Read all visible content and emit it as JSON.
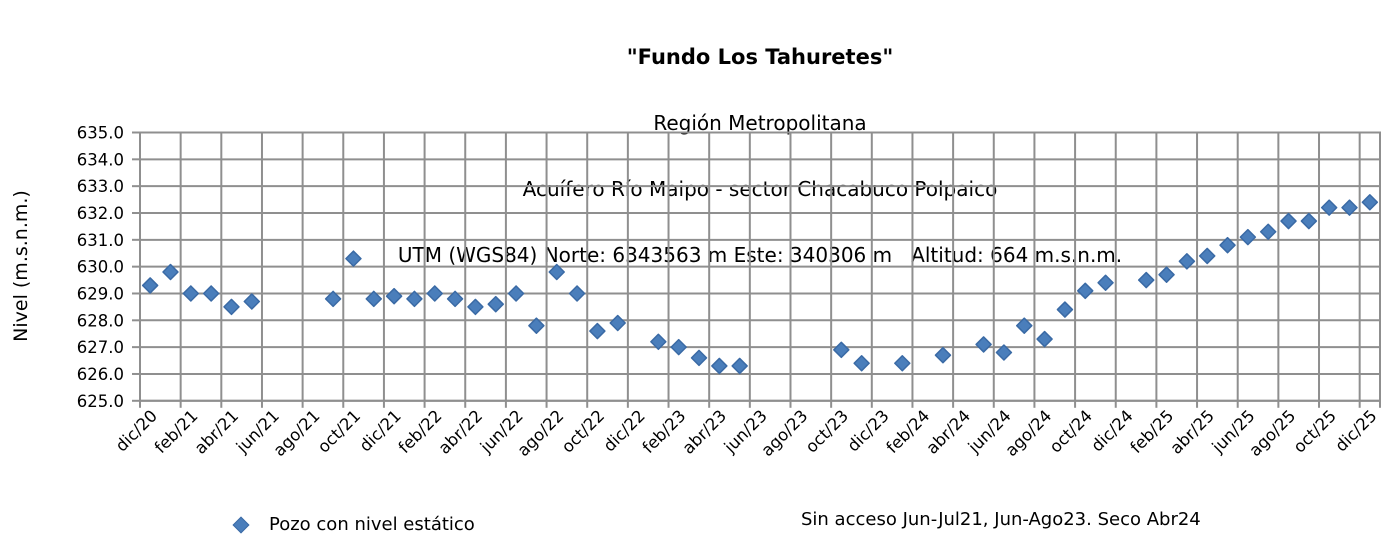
{
  "header": {
    "title": "\"Fundo Los Tahuretes\"",
    "subtitle_region": "Región Metropolitana",
    "subtitle_aquifer": "Acuífero Río Maipo - sector Chacabuco Polpaico",
    "subtitle_location": "UTM (WGS84) Norte: 6343563 m Este: 340306 m   Altitud: 664 m.s.n.m."
  },
  "legend": {
    "label": "Pozo con nivel estático"
  },
  "note": "Sin acceso Jun-Jul21, Jun-Ago23. Seco Abr24",
  "chart_data": {
    "type": "scatter",
    "title": "\"Fundo Los Tahuretes\"",
    "subtitles": [
      "Región Metropolitana",
      "Acuífero Río Maipo - sector Chacabuco Polpaico",
      "UTM (WGS84) Norte: 6343563 m Este: 340306 m   Altitud: 664 m.s.n.m."
    ],
    "xlabel": "",
    "ylabel": "Nivel (m.s.n.m.)",
    "ylim": [
      625.0,
      635.0
    ],
    "y_tick_step": 1.0,
    "grid": true,
    "legend_label": "Pozo con nivel estático",
    "annotation": "Sin acceso Jun-Jul21, Jun-Ago23. Seco Abr24",
    "marker": {
      "shape": "diamond",
      "fill": "#4a7ebb",
      "border": "#3a6aa5"
    },
    "gridline_color": "#8f8f8f",
    "x_tick_labels": [
      "dic/20",
      "feb/21",
      "abr/21",
      "jun/21",
      "ago/21",
      "oct/21",
      "dic/21",
      "feb/22",
      "abr/22",
      "jun/22",
      "ago/22",
      "oct/22",
      "dic/22",
      "feb/23",
      "abr/23",
      "jun/23",
      "ago/23",
      "oct/23",
      "dic/23",
      "feb/24",
      "abr/24",
      "jun/24",
      "ago/24",
      "oct/24",
      "dic/24",
      "feb/25",
      "abr/25",
      "jun/25",
      "ago/25",
      "oct/25",
      "dic/25"
    ],
    "points": [
      {
        "m": "dic/20",
        "v": 629.3
      },
      {
        "m": "ene/21",
        "v": 629.8
      },
      {
        "m": "feb/21",
        "v": 629.0
      },
      {
        "m": "mar/21",
        "v": 629.0
      },
      {
        "m": "abr/21",
        "v": 628.5
      },
      {
        "m": "may/21",
        "v": 628.7
      },
      {
        "m": "jun/21",
        "v": null
      },
      {
        "m": "jul/21",
        "v": null
      },
      {
        "m": "ago/21",
        "v": null
      },
      {
        "m": "sep/21",
        "v": 628.8
      },
      {
        "m": "oct/21",
        "v": 630.3
      },
      {
        "m": "nov/21",
        "v": 628.8
      },
      {
        "m": "dic/21",
        "v": 628.9
      },
      {
        "m": "ene/22",
        "v": 628.8
      },
      {
        "m": "feb/22",
        "v": 629.0
      },
      {
        "m": "mar/22",
        "v": 628.8
      },
      {
        "m": "abr/22",
        "v": 628.5
      },
      {
        "m": "may/22",
        "v": 628.6
      },
      {
        "m": "jun/22",
        "v": 629.0
      },
      {
        "m": "jul/22",
        "v": 627.8
      },
      {
        "m": "ago/22",
        "v": 629.8
      },
      {
        "m": "sep/22",
        "v": 629.0
      },
      {
        "m": "oct/22",
        "v": 627.6
      },
      {
        "m": "nov/22",
        "v": 627.9
      },
      {
        "m": "dic/22",
        "v": null
      },
      {
        "m": "ene/23",
        "v": 627.2
      },
      {
        "m": "feb/23",
        "v": 627.0
      },
      {
        "m": "mar/23",
        "v": 626.6
      },
      {
        "m": "abr/23",
        "v": 626.3
      },
      {
        "m": "may/23",
        "v": 626.3
      },
      {
        "m": "jun/23",
        "v": null
      },
      {
        "m": "jul/23",
        "v": null
      },
      {
        "m": "ago/23",
        "v": null
      },
      {
        "m": "sep/23",
        "v": null
      },
      {
        "m": "oct/23",
        "v": 626.9
      },
      {
        "m": "nov/23",
        "v": 626.4
      },
      {
        "m": "dic/23",
        "v": null
      },
      {
        "m": "ene/24",
        "v": 626.4
      },
      {
        "m": "feb/24",
        "v": null
      },
      {
        "m": "mar/24",
        "v": 626.7
      },
      {
        "m": "abr/24",
        "v": null
      },
      {
        "m": "may/24",
        "v": 627.1
      },
      {
        "m": "jun/24",
        "v": 626.8
      },
      {
        "m": "jul/24",
        "v": 627.8
      },
      {
        "m": "ago/24",
        "v": 627.3
      },
      {
        "m": "sep/24",
        "v": 628.4
      },
      {
        "m": "oct/24",
        "v": 629.1
      },
      {
        "m": "nov/24",
        "v": 629.4
      },
      {
        "m": "dic/24",
        "v": null
      },
      {
        "m": "ene/25",
        "v": 629.5
      },
      {
        "m": "feb/25",
        "v": 629.7
      },
      {
        "m": "mar/25",
        "v": 630.2
      },
      {
        "m": "abr/25",
        "v": 630.4
      },
      {
        "m": "may/25",
        "v": 630.8
      },
      {
        "m": "jun/25",
        "v": 631.1
      },
      {
        "m": "jul/25",
        "v": 631.3
      },
      {
        "m": "ago/25",
        "v": 631.7
      },
      {
        "m": "sep/25",
        "v": 631.7
      },
      {
        "m": "oct/25",
        "v": 632.2
      },
      {
        "m": "nov/25",
        "v": 632.2
      },
      {
        "m": "dic/25",
        "v": 632.4
      }
    ]
  }
}
